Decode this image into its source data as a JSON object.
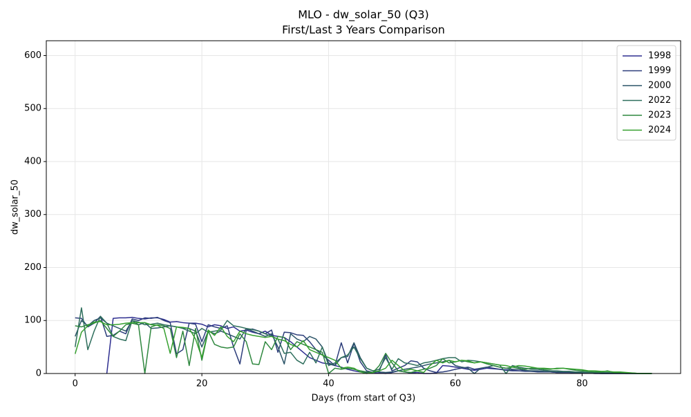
{
  "chart_data": {
    "type": "line",
    "title": "MLO - dw_solar_50 (Q3)",
    "subtitle": "First/Last 3 Years Comparison",
    "x_label": "Days (from start of Q3)",
    "y_label": "dw_solar_50",
    "x": [
      0,
      1,
      2,
      3,
      4,
      5,
      6,
      7,
      8,
      9,
      10,
      11,
      12,
      13,
      14,
      15,
      16,
      17,
      18,
      19,
      20,
      21,
      22,
      23,
      24,
      25,
      26,
      27,
      28,
      29,
      30,
      31,
      32,
      33,
      34,
      35,
      36,
      37,
      38,
      39,
      40,
      41,
      42,
      43,
      44,
      45,
      46,
      47,
      48,
      49,
      50,
      51,
      52,
      53,
      54,
      55,
      56,
      57,
      58,
      59,
      60,
      61,
      62,
      63,
      64,
      65,
      66,
      67,
      68,
      69,
      70,
      71,
      72,
      73,
      74,
      75,
      76,
      77,
      78,
      79,
      80,
      81,
      82,
      83,
      84,
      85,
      86,
      87,
      88,
      89,
      90,
      91
    ],
    "series": [
      {
        "name": "1998",
        "color": "#2d2d8f",
        "values": [
          null,
          null,
          null,
          null,
          null,
          0,
          104,
          105,
          105,
          106,
          104,
          103,
          105,
          105,
          102,
          97,
          98,
          96,
          95,
          95,
          93,
          88,
          92,
          90,
          85,
          88,
          80,
          82,
          78,
          75,
          80,
          72,
          70,
          68,
          60,
          50,
          40,
          30,
          25,
          20,
          18,
          15,
          12,
          8,
          5,
          3,
          2,
          2,
          1,
          0,
          2,
          5,
          3,
          1,
          2,
          0,
          0,
          1,
          15,
          14,
          12,
          10,
          8,
          6,
          8,
          10,
          9,
          8,
          7,
          6,
          5,
          5,
          4,
          4,
          3,
          3,
          2,
          2,
          2,
          1,
          1,
          1,
          0,
          0,
          0,
          0,
          0,
          0,
          0,
          0,
          0,
          0
        ]
      },
      {
        "name": "1999",
        "color": "#2c3d7a",
        "values": [
          105,
          104,
          88,
          95,
          108,
          70,
          72,
          80,
          75,
          103,
          100,
          105,
          104,
          106,
          100,
          96,
          37,
          45,
          95,
          93,
          60,
          92,
          88,
          85,
          90,
          50,
          18,
          82,
          84,
          80,
          75,
          82,
          40,
          78,
          77,
          73,
          72,
          60,
          45,
          35,
          25,
          15,
          58,
          20,
          57,
          22,
          5,
          2,
          5,
          35,
          5,
          10,
          15,
          24,
          22,
          10,
          5,
          2,
          3,
          5,
          8,
          10,
          12,
          8,
          10,
          12,
          10,
          8,
          6,
          5,
          5,
          4,
          4,
          3,
          3,
          3,
          2,
          2,
          2,
          1,
          1,
          1,
          1,
          0,
          0,
          0,
          0,
          0,
          0,
          0,
          0,
          0
        ]
      },
      {
        "name": "2000",
        "color": "#2c5568",
        "values": [
          70,
          100,
          90,
          100,
          105,
          95,
          90,
          85,
          80,
          100,
          92,
          96,
          85,
          86,
          88,
          90,
          88,
          86,
          85,
          80,
          50,
          80,
          75,
          80,
          75,
          70,
          65,
          85,
          80,
          75,
          70,
          75,
          50,
          18,
          75,
          65,
          60,
          70,
          65,
          50,
          20,
          15,
          30,
          32,
          58,
          30,
          10,
          5,
          3,
          2,
          3,
          5,
          8,
          10,
          12,
          15,
          18,
          20,
          22,
          25,
          15,
          12,
          10,
          0,
          10,
          12,
          15,
          12,
          10,
          8,
          8,
          6,
          5,
          5,
          4,
          4,
          3,
          3,
          3,
          2,
          2,
          2,
          2,
          1,
          1,
          1,
          1,
          0,
          0,
          0,
          0,
          0
        ]
      },
      {
        "name": "2022",
        "color": "#2e6e5c",
        "values": [
          50,
          124,
          45,
          80,
          108,
          95,
          70,
          65,
          62,
          100,
          97,
          92,
          93,
          95,
          92,
          90,
          88,
          85,
          80,
          75,
          85,
          78,
          80,
          82,
          100,
          90,
          88,
          85,
          83,
          80,
          75,
          70,
          65,
          38,
          40,
          25,
          18,
          40,
          20,
          50,
          15,
          20,
          30,
          35,
          50,
          28,
          10,
          5,
          8,
          30,
          8,
          28,
          20,
          18,
          15,
          20,
          22,
          25,
          28,
          30,
          30,
          22,
          25,
          24,
          22,
          20,
          18,
          16,
          0,
          15,
          12,
          10,
          8,
          8,
          6,
          5,
          5,
          4,
          4,
          3,
          3,
          2,
          2,
          2,
          2,
          1,
          1,
          1,
          0,
          0,
          0,
          0
        ]
      },
      {
        "name": "2023",
        "color": "#2e873e",
        "values": [
          90,
          88,
          92,
          95,
          100,
          85,
          70,
          80,
          92,
          95,
          92,
          0,
          88,
          92,
          90,
          85,
          30,
          80,
          15,
          85,
          25,
          80,
          55,
          50,
          48,
          50,
          75,
          60,
          18,
          17,
          60,
          45,
          70,
          68,
          45,
          60,
          55,
          50,
          45,
          40,
          0,
          10,
          8,
          10,
          8,
          5,
          3,
          2,
          15,
          38,
          20,
          5,
          3,
          2,
          5,
          8,
          10,
          15,
          28,
          20,
          22,
          25,
          22,
          20,
          22,
          18,
          15,
          12,
          10,
          12,
          10,
          8,
          10,
          10,
          8,
          8,
          10,
          10,
          8,
          6,
          5,
          4,
          3,
          3,
          5,
          2,
          2,
          1,
          1,
          0,
          0,
          0
        ]
      },
      {
        "name": "2024",
        "color": "#35a02f",
        "values": [
          37,
          78,
          90,
          97,
          98,
          92,
          92,
          93,
          95,
          96,
          96,
          96,
          92,
          91,
          85,
          38,
          88,
          87,
          85,
          65,
          30,
          82,
          72,
          88,
          70,
          60,
          80,
          75,
          72,
          70,
          68,
          70,
          65,
          62,
          55,
          50,
          62,
          45,
          40,
          35,
          30,
          25,
          10,
          12,
          10,
          3,
          0,
          2,
          5,
          10,
          25,
          15,
          5,
          8,
          5,
          2,
          15,
          25,
          20,
          25,
          22,
          25,
          24,
          20,
          22,
          20,
          18,
          16,
          15,
          12,
          15,
          14,
          12,
          10,
          10,
          9,
          9,
          10,
          9,
          8,
          7,
          5,
          5,
          4,
          4,
          3,
          3,
          2,
          1,
          0,
          0,
          0
        ]
      }
    ],
    "xlim": [
      -4.55,
      95.55
    ],
    "ylim": [
      0,
      628
    ],
    "xticks": [
      0,
      20,
      40,
      60,
      80
    ],
    "yticks": [
      0,
      100,
      200,
      300,
      400,
      500,
      600
    ],
    "grid": true,
    "legend": "upper right"
  }
}
